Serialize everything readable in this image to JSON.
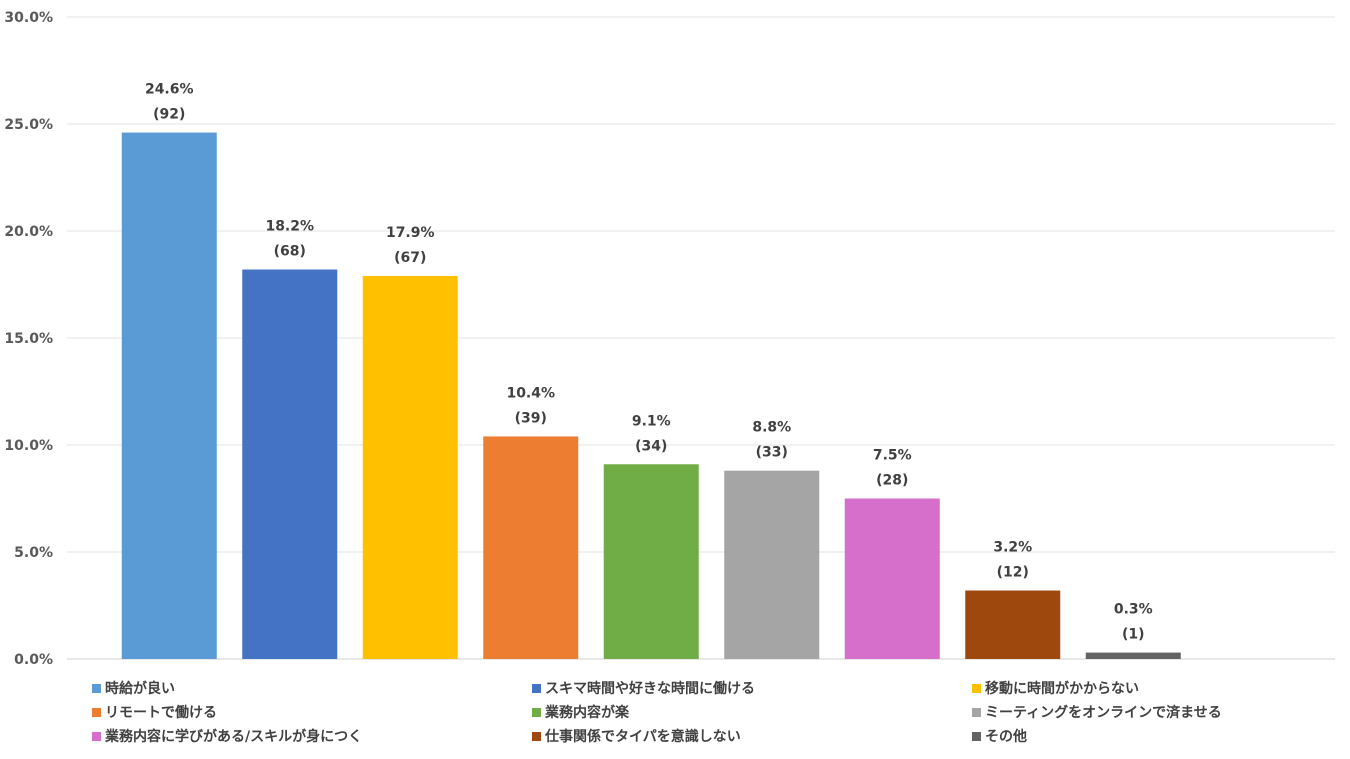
{
  "chart_data": {
    "type": "bar",
    "title": "",
    "xlabel": "",
    "ylabel": "",
    "ylim": [
      0,
      30
    ],
    "y_ticks": [
      "0.0%",
      "5.0%",
      "10.0%",
      "15.0%",
      "20.0%",
      "25.0%",
      "30.0%"
    ],
    "grid": true,
    "legend_position": "bottom",
    "categories": [
      "時給が良い",
      "スキマ時間や好きな時間に働ける",
      "移動に時間がかからない",
      "リモートで働ける",
      "業務内容が楽",
      "ミーティングをオンラインで済ませる",
      "業務内容に学びがある/スキルが身につく",
      "仕事関係でタイパを意識しない",
      "その他"
    ],
    "values": [
      24.6,
      18.2,
      17.9,
      10.4,
      9.1,
      8.8,
      7.5,
      3.2,
      0.3
    ],
    "percent_labels": [
      "24.6%",
      "18.2%",
      "17.9%",
      "10.4%",
      "9.1%",
      "8.8%",
      "7.5%",
      "3.2%",
      "0.3%"
    ],
    "count_labels": [
      "(92)",
      "(68)",
      "(67)",
      "(39)",
      "(34)",
      "(33)",
      "(28)",
      "(12)",
      "(1)"
    ],
    "colors": [
      "#5b9bd5",
      "#4472c4",
      "#ffc000",
      "#ed7d31",
      "#70ad47",
      "#a5a5a5",
      "#d56fcb",
      "#9e480e",
      "#636363"
    ]
  }
}
